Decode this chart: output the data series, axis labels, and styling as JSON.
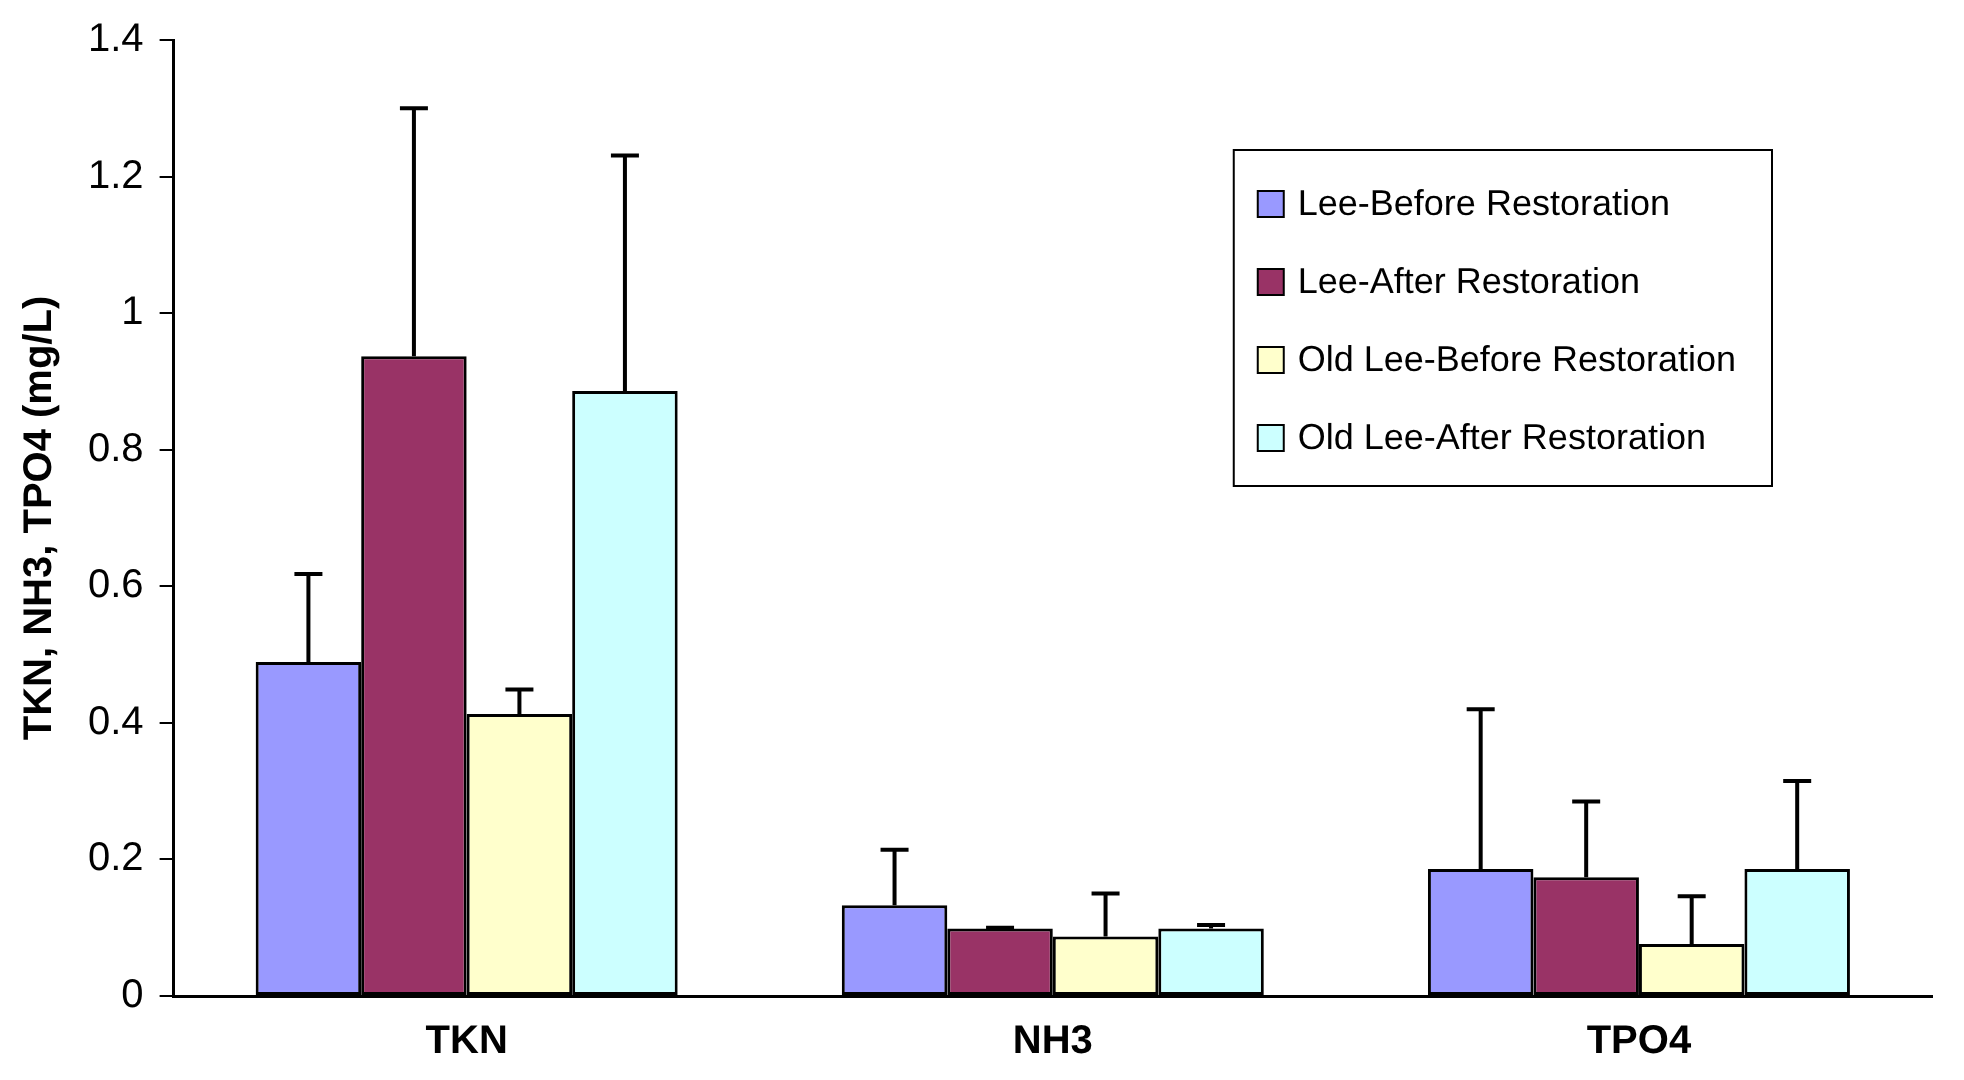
{
  "chart_data": {
    "type": "bar",
    "ylabel": "TKN, NH3, TPO4 (mg/L)",
    "categories": [
      "TKN",
      "NH3",
      "TPO4"
    ],
    "series": [
      {
        "name": "Lee-Before Restoration",
        "color": "#9999ff",
        "values": [
          0.489,
          0.133,
          0.186
        ],
        "errors": [
          [
            0.489,
            0.618
          ],
          [
            0.133,
            0.214
          ],
          [
            0.186,
            0.42
          ]
        ]
      },
      {
        "name": "Lee-After Restoration",
        "color": "#993366",
        "values": [
          0.937,
          0.099,
          0.174
        ],
        "errors": [
          [
            0.937,
            1.3
          ],
          [
            0.099,
            0.1
          ],
          [
            0.174,
            0.285
          ]
        ]
      },
      {
        "name": "Old Lee-Before Restoration",
        "color": "#ffffcc",
        "values": [
          0.413,
          0.087,
          0.076
        ],
        "errors": [
          [
            0.413,
            0.449
          ],
          [
            0.087,
            0.15
          ],
          [
            0.076,
            0.146
          ]
        ]
      },
      {
        "name": "Old Lee-After Restoration",
        "color": "#ccffff",
        "values": [
          0.886,
          0.099,
          0.186
        ],
        "errors": [
          [
            0.886,
            1.231
          ],
          [
            0.099,
            0.104
          ],
          [
            0.186,
            0.315
          ]
        ]
      }
    ],
    "ylim": [
      0,
      1.4
    ],
    "yticks": [
      0,
      0.2,
      0.4,
      0.6,
      0.8,
      1,
      1.2,
      1.4
    ],
    "grid": false,
    "legend": "top right"
  }
}
